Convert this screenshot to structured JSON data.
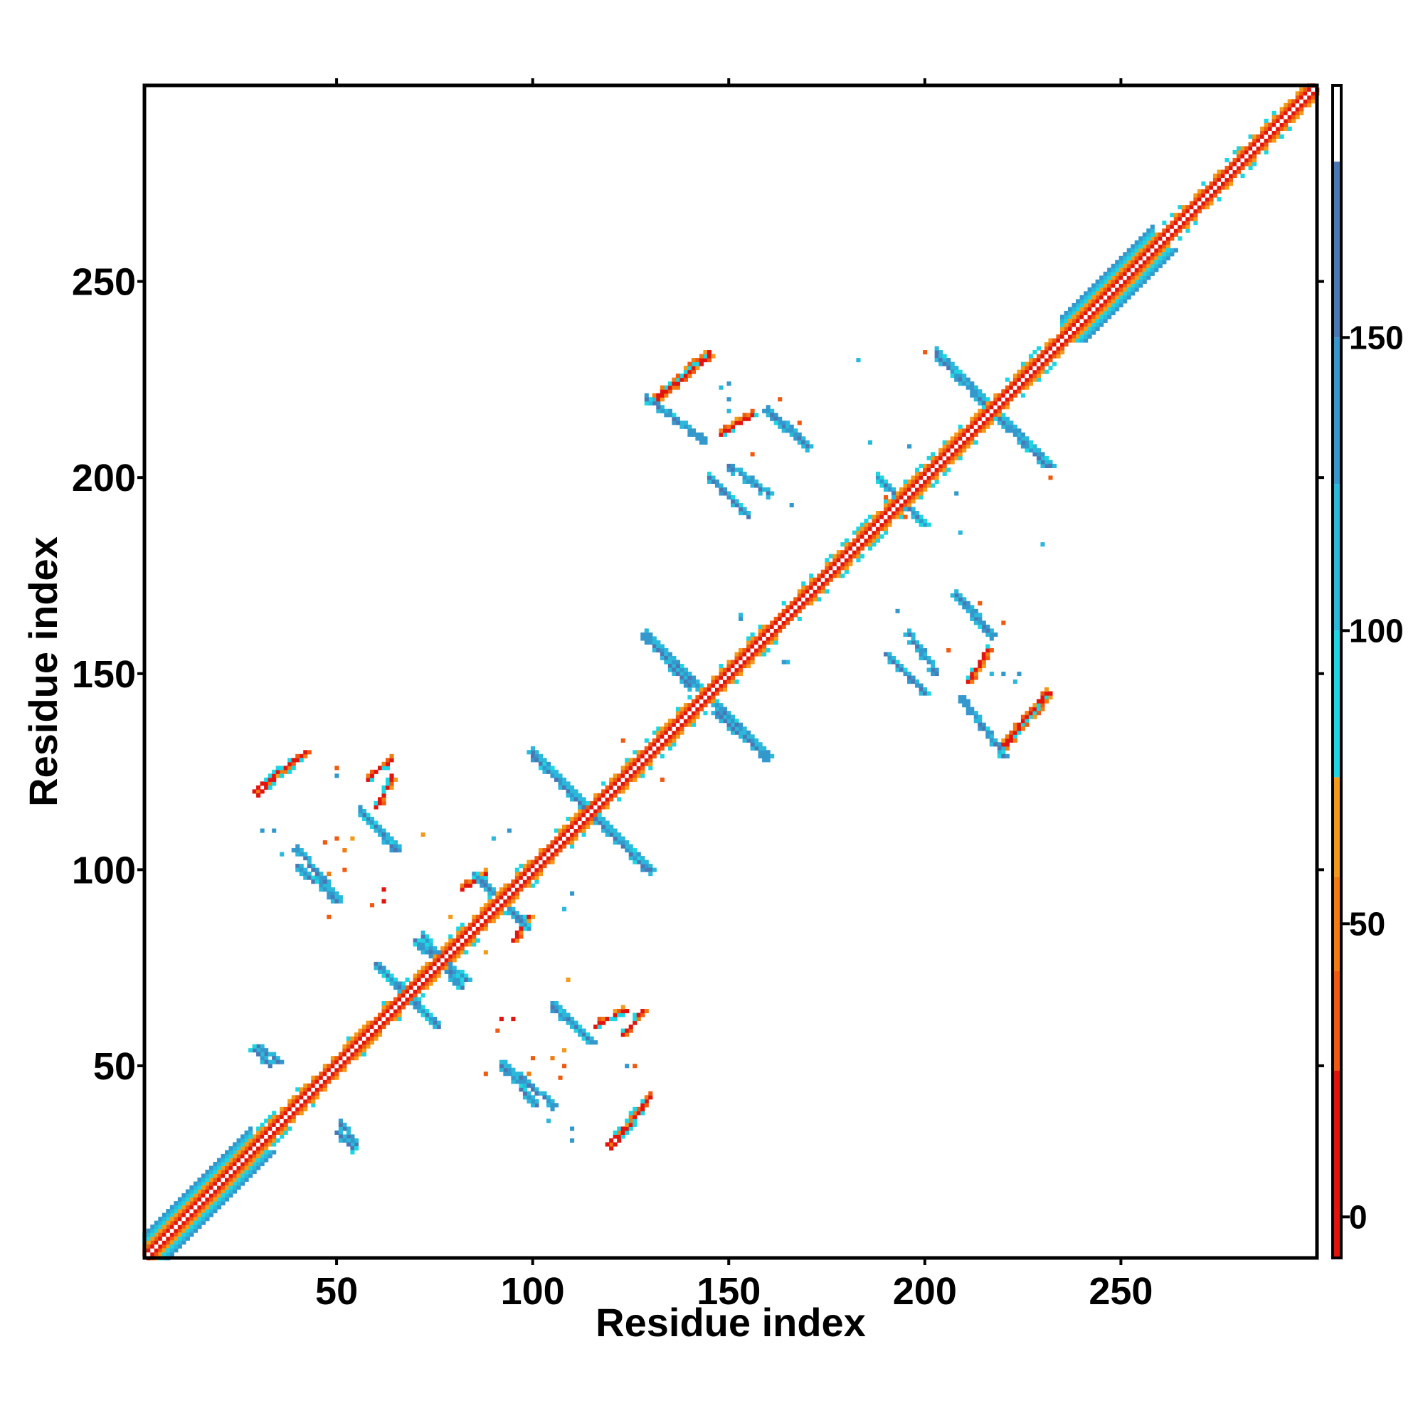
{
  "chart_data": {
    "type": "heatmap",
    "title": "",
    "xlabel": "Residue index",
    "ylabel": "Residue index",
    "xlim": [
      1,
      300
    ],
    "ylim": [
      1,
      300
    ],
    "x_ticks": [
      50,
      100,
      150,
      200,
      250
    ],
    "y_ticks": [
      50,
      100,
      150,
      200,
      250
    ],
    "grid": false,
    "legend": "none",
    "colorbar": {
      "ticks": [
        0,
        50,
        100,
        150
      ],
      "range": [
        -7,
        193
      ],
      "bands": [
        {
          "from": -7,
          "to": 25,
          "color": "#e2140f"
        },
        {
          "from": 25,
          "to": 42,
          "color": "#ef5a10"
        },
        {
          "from": 42,
          "to": 58,
          "color": "#f07c12"
        },
        {
          "from": 58,
          "to": 75,
          "color": "#f39a1a"
        },
        {
          "from": 75,
          "to": 100,
          "color": "#1ed6e2"
        },
        {
          "from": 100,
          "to": 125,
          "color": "#2ab8db"
        },
        {
          "from": 125,
          "to": 150,
          "color": "#3498cc"
        },
        {
          "from": 150,
          "to": 180,
          "color": "#4a78b4"
        },
        {
          "from": 180,
          "to": 193,
          "color": "#ffffff"
        }
      ]
    },
    "features": {
      "diagonal": {
        "from": 1,
        "to": 300
      },
      "thick_diagonal_regions": [
        [
          1,
          28
        ],
        [
          235,
          258
        ]
      ],
      "strands": [
        {
          "x": [
            30,
            35
          ],
          "y": [
            55,
            51
          ]
        },
        {
          "x": [
            50,
            54
          ],
          "y": [
            33,
            29
          ]
        },
        {
          "x": [
            40,
            50
          ],
          "y": [
            101,
            92
          ]
        },
        {
          "x": [
            58,
            65
          ],
          "y": [
            113,
            105
          ]
        },
        {
          "x": [
            60,
            75
          ],
          "y": [
            76,
            61
          ]
        },
        {
          "x": [
            70,
            83
          ],
          "y": [
            82,
            72
          ]
        },
        {
          "x": [
            85,
            98
          ],
          "y": [
            99,
            86
          ]
        },
        {
          "x": [
            92,
            105
          ],
          "y": [
            51,
            40
          ]
        },
        {
          "x": [
            105,
            115
          ],
          "y": [
            66,
            56
          ]
        },
        {
          "x": [
            100,
            130
          ],
          "y": [
            129,
            100
          ]
        },
        {
          "x": [
            128,
            140
          ],
          "y": [
            160,
            147
          ]
        },
        {
          "x": [
            145,
            160
          ],
          "y": [
            144,
            129
          ]
        },
        {
          "x": [
            150,
            160
          ],
          "y": [
            203,
            196
          ]
        },
        {
          "x": [
            160,
            170
          ],
          "y": [
            217,
            208
          ]
        },
        {
          "x": [
            188,
            200
          ],
          "y": [
            200,
            188
          ]
        },
        {
          "x": [
            190,
            200
          ],
          "y": [
            155,
            145
          ]
        },
        {
          "x": [
            203,
            232
          ],
          "y": [
            231,
            203
          ]
        },
        {
          "x": [
            208,
            217
          ],
          "y": [
            170,
            160
          ]
        },
        {
          "x": [
            209,
            220
          ],
          "y": [
            144,
            129
          ]
        }
      ],
      "warm_patches": [
        {
          "x": [
            29,
            42
          ],
          "y": [
            120,
            130
          ],
          "dir": "up"
        },
        {
          "x": [
            119,
            130
          ],
          "y": [
            30,
            42
          ],
          "dir": "up"
        },
        {
          "x": [
            132,
            145
          ],
          "y": [
            220,
            231
          ],
          "dir": "up"
        },
        {
          "x": [
            219,
            232
          ],
          "y": [
            130,
            145
          ],
          "dir": "up"
        },
        {
          "x": [
            60,
            64
          ],
          "y": [
            116,
            124
          ],
          "dir": "up"
        },
        {
          "x": [
            123,
            128
          ],
          "y": [
            58,
            64
          ],
          "dir": "up"
        },
        {
          "x": [
            95,
            99
          ],
          "y": [
            82,
            88
          ],
          "dir": "up"
        },
        {
          "x": [
            211,
            216
          ],
          "y": [
            148,
            156
          ],
          "dir": "up"
        }
      ],
      "specks": [
        {
          "x": 34,
          "y": 110,
          "v": 140
        },
        {
          "x": 36,
          "y": 104,
          "v": 120
        },
        {
          "x": 48,
          "y": 88,
          "v": 40
        },
        {
          "x": 50,
          "y": 124,
          "v": 140
        },
        {
          "x": 52,
          "y": 105,
          "v": 45
        },
        {
          "x": 54,
          "y": 108,
          "v": 60
        },
        {
          "x": 62,
          "y": 92,
          "v": 20
        },
        {
          "x": 72,
          "y": 109,
          "v": 60
        },
        {
          "x": 74,
          "y": 61,
          "v": 20
        },
        {
          "x": 79,
          "y": 88,
          "v": 60
        },
        {
          "x": 88,
          "y": 48,
          "v": 50
        },
        {
          "x": 90,
          "y": 108,
          "v": 110
        },
        {
          "x": 91,
          "y": 59,
          "v": 30
        },
        {
          "x": 95,
          "y": 62,
          "v": 20
        },
        {
          "x": 99,
          "y": 48,
          "v": 50
        },
        {
          "x": 100,
          "y": 52,
          "v": 30
        },
        {
          "x": 105,
          "y": 39,
          "v": 140
        },
        {
          "x": 107,
          "y": 47,
          "v": 40
        },
        {
          "x": 108,
          "y": 50,
          "v": 30
        },
        {
          "x": 109,
          "y": 72,
          "v": 40
        },
        {
          "x": 110,
          "y": 94,
          "v": 130
        },
        {
          "x": 110,
          "y": 31,
          "v": 140
        },
        {
          "x": 126,
          "y": 50,
          "v": 40
        },
        {
          "x": 133,
          "y": 123,
          "v": 40
        },
        {
          "x": 134,
          "y": 217,
          "v": 20
        },
        {
          "x": 150,
          "y": 224,
          "v": 140
        },
        {
          "x": 153,
          "y": 165,
          "v": 120
        },
        {
          "x": 156,
          "y": 206,
          "v": 40
        },
        {
          "x": 163,
          "y": 220,
          "v": 40
        },
        {
          "x": 164,
          "y": 153,
          "v": 140
        },
        {
          "x": 166,
          "y": 193,
          "v": 130
        },
        {
          "x": 167,
          "y": 212,
          "v": 20
        },
        {
          "x": 183,
          "y": 230,
          "v": 120
        },
        {
          "x": 186,
          "y": 209,
          "v": 100
        },
        {
          "x": 190,
          "y": 195,
          "v": 30
        },
        {
          "x": 205,
          "y": 206,
          "v": 45
        },
        {
          "x": 208,
          "y": 196,
          "v": 140
        },
        {
          "x": 212,
          "y": 148,
          "v": 20
        },
        {
          "x": 214,
          "y": 168,
          "v": 40
        },
        {
          "x": 216,
          "y": 156,
          "v": 130
        },
        {
          "x": 217,
          "y": 150,
          "v": 120
        },
        {
          "x": 220,
          "y": 150,
          "v": 140
        },
        {
          "x": 223,
          "y": 148,
          "v": 120
        },
        {
          "x": 232,
          "y": 200,
          "v": 30
        }
      ]
    }
  }
}
